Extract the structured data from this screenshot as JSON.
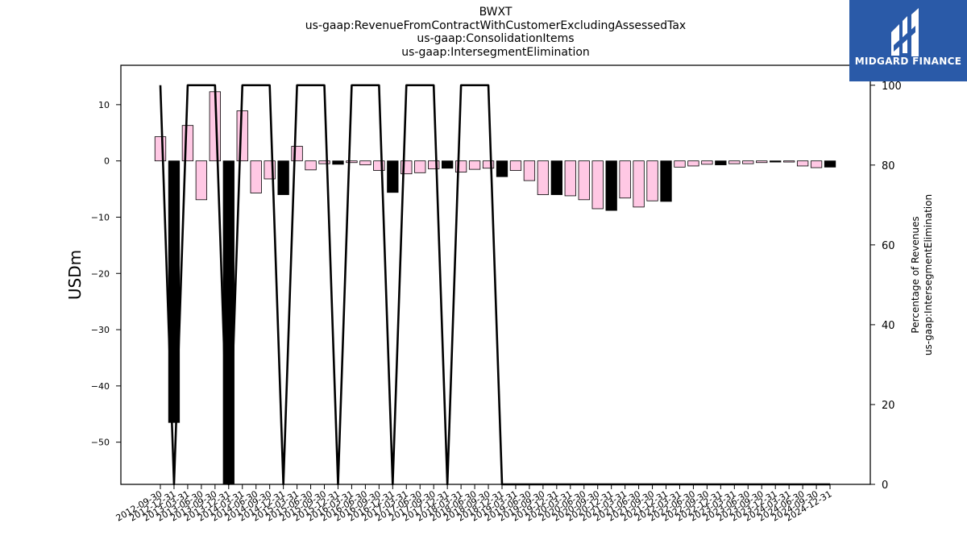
{
  "logo": {
    "text": "MIDGARD FINANCE",
    "color": "#2a5aa8"
  },
  "chart_data": {
    "type": "bar",
    "title": [
      "BWXT",
      "us-gaap:RevenueFromContractWithCustomerExcludingAssessedTax",
      "us-gaap:ConsolidationItems",
      "us-gaap:IntersegmentElimination"
    ],
    "ylabel": "USDm",
    "y2label": [
      "Percentage of Revenues",
      "us-gaap:IntersegmentElimination"
    ],
    "ylim": [
      -57.5,
      17
    ],
    "y2lim": [
      0,
      105
    ],
    "yticks": [
      10,
      0,
      -10,
      -20,
      -30,
      -40,
      -50
    ],
    "y2ticks": [
      0,
      20,
      40,
      60,
      80,
      100
    ],
    "categories": [
      "2012-09-30",
      "2012-12-31",
      "2013-03-31",
      "2013-06-30",
      "2013-09-30",
      "2013-12-31",
      "2014-03-31",
      "2014-06-30",
      "2014-09-30",
      "2014-12-31",
      "2015-03-31",
      "2015-06-30",
      "2015-09-30",
      "2015-12-31",
      "2016-03-31",
      "2016-06-30",
      "2016-09-30",
      "2016-12-31",
      "2017-03-31",
      "2017-06-30",
      "2017-09-30",
      "2017-12-31",
      "2018-03-31",
      "2018-06-30",
      "2018-09-30",
      "2018-12-31",
      "2019-03-31",
      "2019-06-30",
      "2019-09-30",
      "2019-12-31",
      "2020-03-31",
      "2020-06-30",
      "2020-09-30",
      "2020-12-31",
      "2021-03-31",
      "2021-06-30",
      "2021-09-30",
      "2021-12-31",
      "2022-03-31",
      "2022-06-30",
      "2022-09-30",
      "2022-12-31",
      "2023-03-31",
      "2023-06-30",
      "2023-09-30",
      "2023-12-31",
      "2024-03-31",
      "2024-06-30",
      "2024-09-30",
      "2024-12-31"
    ],
    "series": [
      {
        "type": "bar",
        "colors": {
          "pink": "#ffc8e4",
          "black": "#000000"
        },
        "values": [
          4.3,
          -46.5,
          6.3,
          -6.9,
          12.3,
          -58,
          8.9,
          -5.7,
          -3.2,
          -6,
          2.6,
          -1.6,
          -0.5,
          -0.6,
          -0.3,
          -0.7,
          -1.7,
          -5.6,
          -2.3,
          -2.1,
          -1.4,
          -1.3,
          -2,
          -1.5,
          -1.3,
          -2.8,
          -1.7,
          -3.5,
          -6,
          -6,
          -6.2,
          -6.9,
          -8.5,
          -8.8,
          -6.6,
          -8.2,
          -7.1,
          -7.2,
          -1.1,
          -0.9,
          -0.6,
          -0.7,
          -0.5,
          -0.5,
          -0.3,
          -0.2,
          -0.2,
          -0.9,
          -1.2,
          -1.1
        ],
        "bar_colors": [
          "pink",
          "black",
          "pink",
          "pink",
          "pink",
          "black",
          "pink",
          "pink",
          "pink",
          "black",
          "pink",
          "pink",
          "pink",
          "black",
          "pink",
          "pink",
          "pink",
          "black",
          "pink",
          "pink",
          "pink",
          "black",
          "pink",
          "pink",
          "pink",
          "black",
          "pink",
          "pink",
          "pink",
          "black",
          "pink",
          "pink",
          "pink",
          "black",
          "pink",
          "pink",
          "pink",
          "black",
          "pink",
          "pink",
          "pink",
          "black",
          "pink",
          "pink",
          "pink",
          "black",
          "pink",
          "pink",
          "pink",
          "black"
        ]
      },
      {
        "type": "line",
        "axis": "right",
        "color": "#000000",
        "values": [
          100,
          0,
          100,
          100,
          100,
          0,
          100,
          100,
          100,
          0,
          100,
          100,
          100,
          0,
          100,
          100,
          100,
          0,
          100,
          100,
          100,
          0,
          100,
          100,
          100,
          0,
          0,
          0,
          0,
          0,
          0,
          0,
          0,
          0,
          0,
          0,
          0,
          0,
          0,
          0,
          0,
          0,
          0,
          0,
          0,
          0,
          0,
          0,
          0,
          0
        ]
      }
    ]
  }
}
